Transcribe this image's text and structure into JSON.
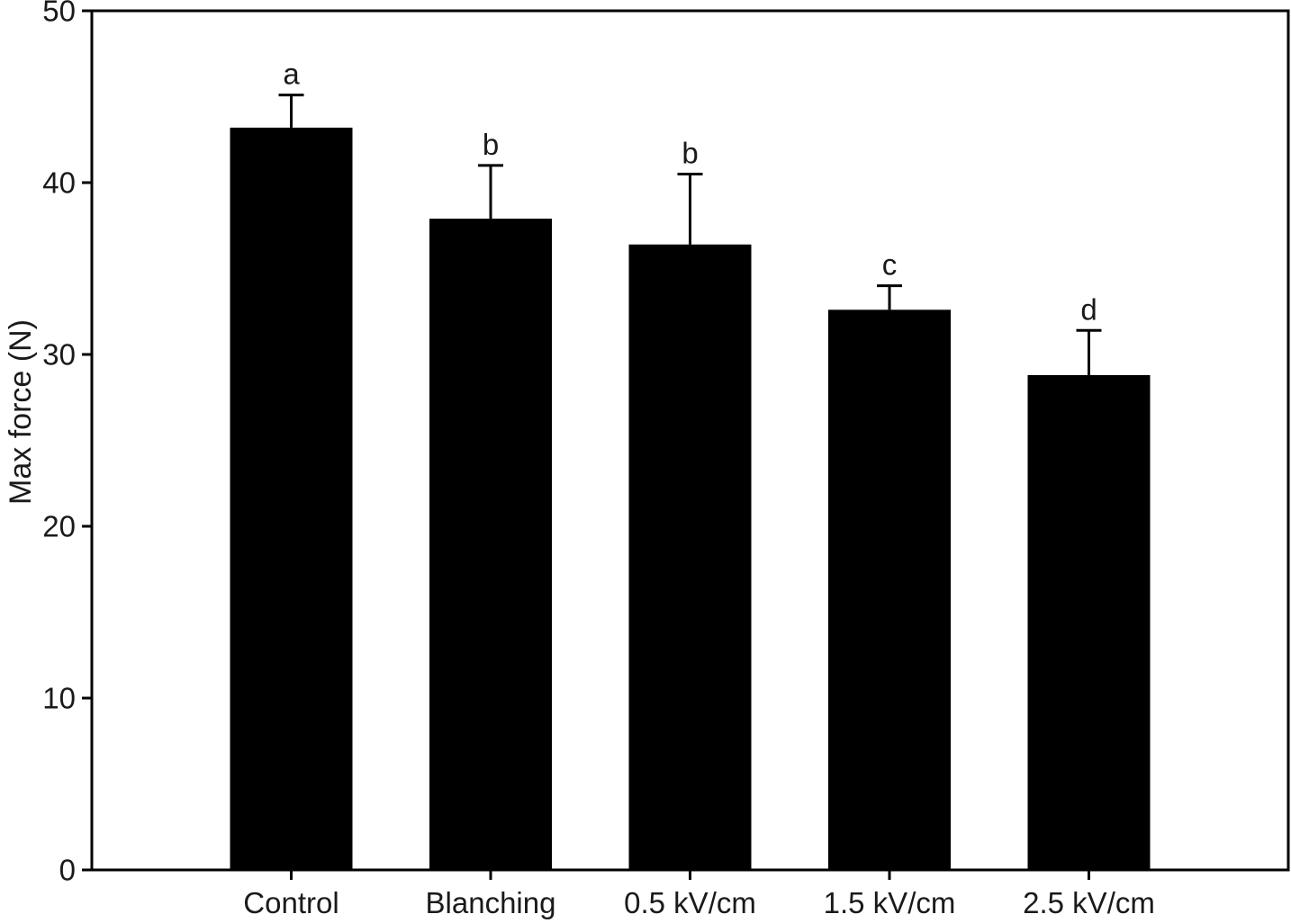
{
  "figure": {
    "background": "#ffffff",
    "axis_color": "#000000",
    "text_color": "#1a1a1a"
  },
  "chart_data": {
    "type": "bar",
    "title": "",
    "xlabel": "",
    "ylabel": "Max force (N)",
    "categories": [
      "Control",
      "Blanching",
      "0.5 kV/cm",
      "1.5 kV/cm",
      "2.5 kV/cm"
    ],
    "values": [
      43.2,
      37.9,
      36.4,
      32.6,
      28.8
    ],
    "errors": [
      1.9,
      3.1,
      4.1,
      1.4,
      2.6
    ],
    "significance_letters": [
      "a",
      "b",
      "b",
      "c",
      "d"
    ],
    "ylim": [
      0,
      50
    ],
    "yticks": [
      0,
      10,
      20,
      30,
      40,
      50
    ],
    "ytick_labels": [
      "0",
      "10",
      "20",
      "30",
      "40",
      "50"
    ],
    "bar_color": "#000000",
    "error_bar_color": "#000000",
    "grid": false,
    "legend": "none",
    "frame": "full-box",
    "error_bar_direction": "up"
  }
}
